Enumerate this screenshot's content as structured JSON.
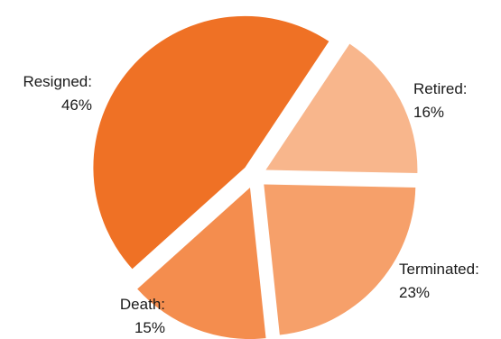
{
  "chart_data": {
    "type": "pie",
    "exploded": true,
    "title": "",
    "slices": [
      {
        "name": "Resigned",
        "value": 46,
        "label": "Resigned:",
        "pct_label": "46%",
        "color": "#ef7125"
      },
      {
        "name": "Retired",
        "value": 16,
        "label": "Retired:",
        "pct_label": "16%",
        "color": "#f8b68c"
      },
      {
        "name": "Terminated",
        "value": 23,
        "label": "Terminated:",
        "pct_label": "23%",
        "color": "#f6a06a"
      },
      {
        "name": "Death",
        "value": 15,
        "label": "Death:",
        "pct_label": "15%",
        "color": "#f48d4e"
      }
    ]
  }
}
